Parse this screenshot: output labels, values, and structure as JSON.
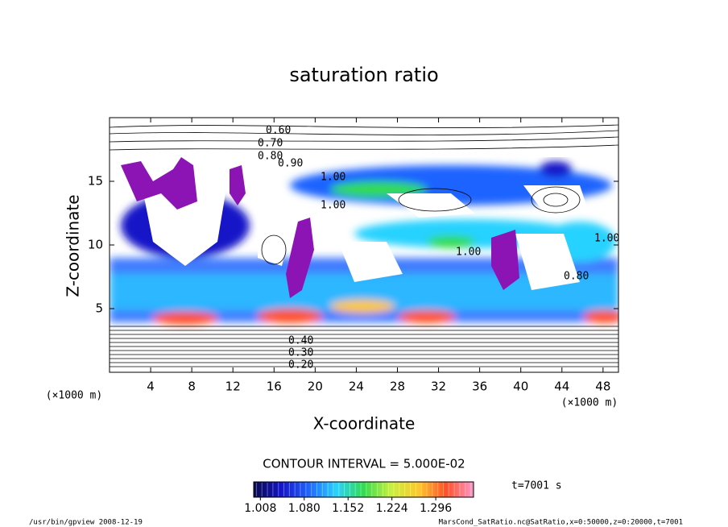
{
  "chart_data": {
    "type": "contour",
    "title": "saturation ratio",
    "x_label": "X-coordinate",
    "y_label": "Z-coordinate",
    "x_unit": "(×1000 m)",
    "y_unit": "(×1000 m)",
    "xlim": [
      0,
      49.5
    ],
    "ylim": [
      0,
      20
    ],
    "xticks": [
      4,
      8,
      12,
      16,
      20,
      24,
      28,
      32,
      36,
      40,
      44,
      48
    ],
    "yticks": [
      5,
      10,
      15
    ],
    "contour_labels": [
      "0.60",
      "0.70",
      "0.80",
      "0.90",
      "1.00",
      "1.00",
      "1.00",
      "1.00",
      "0.80",
      "0.20",
      "0.30",
      "0.40"
    ],
    "contour_interval": "CONTOUR INTERVAL = 5.000E-02",
    "colorbar": {
      "lim": [
        0.997,
        1.358
      ],
      "ticks": [
        {
          "value": 1.008,
          "label": "1.008"
        },
        {
          "value": 1.08,
          "label": "1.080"
        },
        {
          "value": 1.152,
          "label": "1.152"
        },
        {
          "value": 1.224,
          "label": "1.224"
        },
        {
          "value": 1.296,
          "label": "1.296"
        }
      ],
      "colors": [
        "#0a0a50",
        "#1414c8",
        "#1e64ff",
        "#28d2ff",
        "#32dc50",
        "#c8f03c",
        "#ffc828",
        "#ff5028",
        "#ff96c8"
      ]
    },
    "time_label": "t=7001 s",
    "footer_left": "/usr/bin/gpview  2008-12-19",
    "footer_right": "MarsCond_SatRatio.nc@SatRatio,x=0:50000,z=0:20000,t=7001"
  }
}
